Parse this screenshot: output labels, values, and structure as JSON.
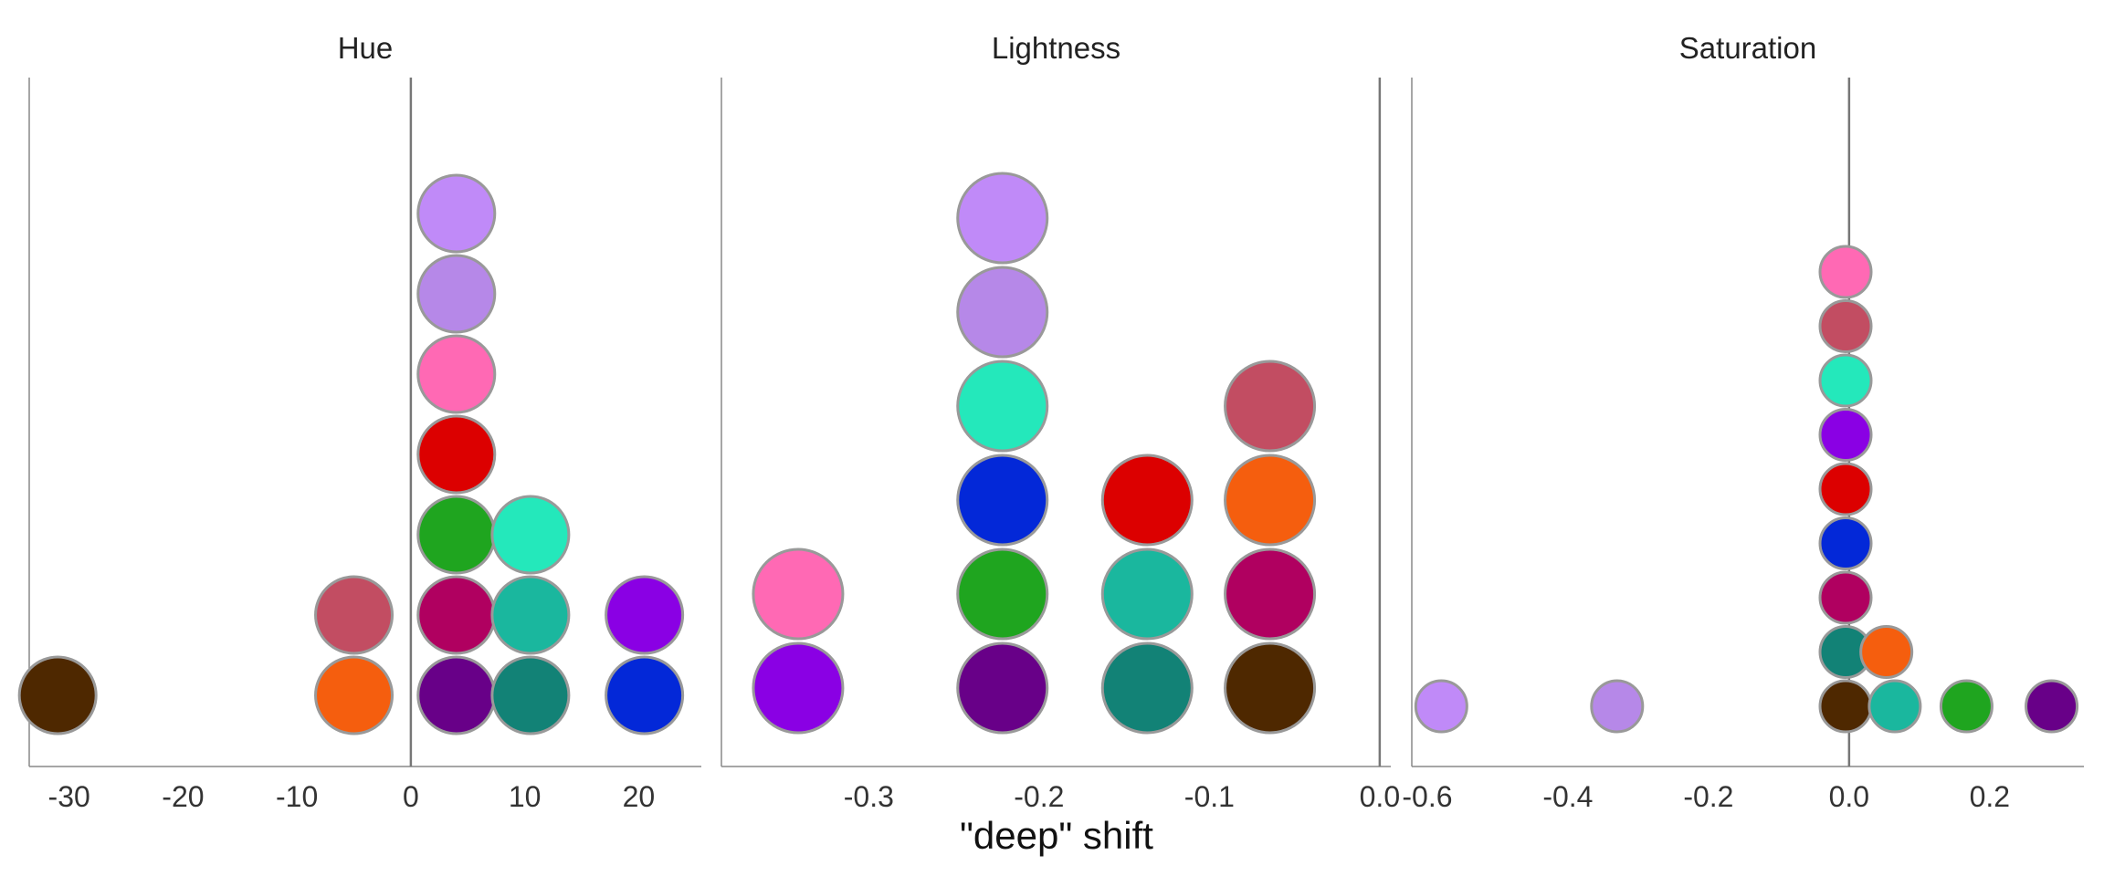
{
  "chart_data": {
    "type": "scatter",
    "xlabel": "\"deep\" shift",
    "panels": [
      {
        "title": "Hue",
        "xlim": [
          -33.5,
          25.5
        ],
        "ticks": [
          -30,
          -20,
          -10,
          0,
          10,
          20
        ],
        "tick_labels": [
          "-30",
          "-20",
          "-10",
          "0",
          "10",
          "20"
        ],
        "zero_line": 0,
        "points": [
          {
            "x": -31,
            "level": 0,
            "color": "#4e2800"
          },
          {
            "x": -5,
            "level": 0,
            "color": "#f55e0e"
          },
          {
            "x": -5,
            "level": 1,
            "color": "#c24d62"
          },
          {
            "x": 4,
            "level": 0,
            "color": "#680088"
          },
          {
            "x": 4,
            "level": 1,
            "color": "#b00060"
          },
          {
            "x": 4,
            "level": 2,
            "color": "#1fa51f"
          },
          {
            "x": 4,
            "level": 3,
            "color": "#dc0000"
          },
          {
            "x": 4,
            "level": 4,
            "color": "#ff69b4"
          },
          {
            "x": 4,
            "level": 5,
            "color": "#b688e8"
          },
          {
            "x": 4,
            "level": 6,
            "color": "#c08af8"
          },
          {
            "x": 10.5,
            "level": 0,
            "color": "#128276"
          },
          {
            "x": 10.5,
            "level": 1,
            "color": "#1ab79e"
          },
          {
            "x": 10.5,
            "level": 2,
            "color": "#24e8bb"
          },
          {
            "x": 20.5,
            "level": 0,
            "color": "#0328d8"
          },
          {
            "x": 20.5,
            "level": 1,
            "color": "#8a00e4"
          }
        ]
      },
      {
        "title": "Lightness",
        "xlim": [
          -0.3865,
          0.0065
        ],
        "ticks": [
          -0.3,
          -0.2,
          -0.1,
          0.0
        ],
        "tick_labels": [
          "-0.3",
          "-0.2",
          "-0.1",
          "0.0"
        ],
        "zero_line": 0,
        "points": [
          {
            "x": -0.3415,
            "level": 0,
            "color": "#8a00e4"
          },
          {
            "x": -0.3415,
            "level": 1,
            "color": "#ff69b4"
          },
          {
            "x": -0.2215,
            "level": 0,
            "color": "#680088"
          },
          {
            "x": -0.2215,
            "level": 1,
            "color": "#1fa51f"
          },
          {
            "x": -0.2215,
            "level": 2,
            "color": "#0328d8"
          },
          {
            "x": -0.2215,
            "level": 3,
            "color": "#24e8bb"
          },
          {
            "x": -0.2215,
            "level": 4,
            "color": "#b688e8"
          },
          {
            "x": -0.2215,
            "level": 5,
            "color": "#c08af8"
          },
          {
            "x": -0.1365,
            "level": 0,
            "color": "#128276"
          },
          {
            "x": -0.1365,
            "level": 1,
            "color": "#1ab79e"
          },
          {
            "x": -0.1365,
            "level": 2,
            "color": "#dc0000"
          },
          {
            "x": -0.0645,
            "level": 0,
            "color": "#4e2800"
          },
          {
            "x": -0.0645,
            "level": 1,
            "color": "#b00060"
          },
          {
            "x": -0.0645,
            "level": 2,
            "color": "#f55e0e"
          },
          {
            "x": -0.0645,
            "level": 3,
            "color": "#c24d62"
          }
        ]
      },
      {
        "title": "Saturation",
        "xlim": [
          -0.622,
          0.334
        ],
        "ticks": [
          -0.6,
          -0.4,
          -0.2,
          0.0,
          0.2
        ],
        "tick_labels": [
          "-0.6",
          "-0.4",
          "-0.2",
          "0.0",
          "0.2"
        ],
        "zero_line": 0,
        "points": [
          {
            "x": -0.58,
            "level": 0,
            "color": "#c08af8"
          },
          {
            "x": -0.33,
            "level": 0,
            "color": "#b688e8"
          },
          {
            "x": -0.005,
            "level": 0,
            "color": "#4e2800"
          },
          {
            "x": -0.005,
            "level": 1,
            "color": "#128276"
          },
          {
            "x": -0.005,
            "level": 2,
            "color": "#b00060"
          },
          {
            "x": -0.005,
            "level": 3,
            "color": "#0328d8"
          },
          {
            "x": -0.005,
            "level": 4,
            "color": "#dc0000"
          },
          {
            "x": -0.005,
            "level": 5,
            "color": "#8a00e4"
          },
          {
            "x": -0.005,
            "level": 6,
            "color": "#24e8bb"
          },
          {
            "x": -0.005,
            "level": 7,
            "color": "#c24d62"
          },
          {
            "x": -0.005,
            "level": 8,
            "color": "#ff69b4"
          },
          {
            "x": 0.065,
            "level": 0,
            "color": "#1ab79e"
          },
          {
            "x": 0.053,
            "level": 1,
            "color": "#f55e0e"
          },
          {
            "x": 0.167,
            "level": 0,
            "color": "#1fa51f"
          },
          {
            "x": 0.288,
            "level": 0,
            "color": "#680088"
          }
        ]
      }
    ]
  }
}
